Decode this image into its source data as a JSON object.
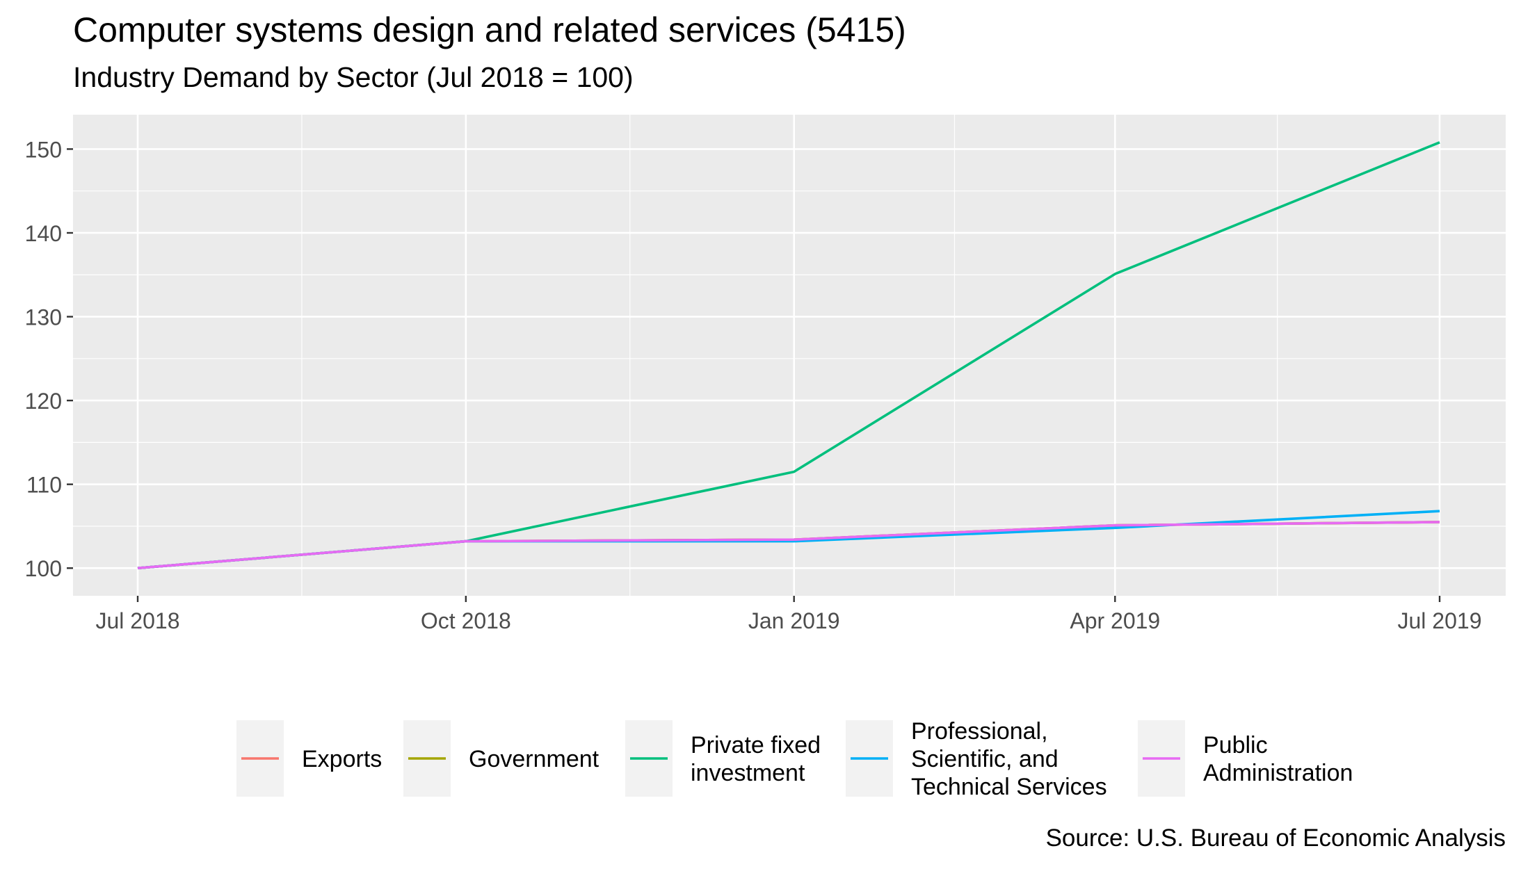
{
  "header": {
    "title": "Computer systems design and related services (5415)",
    "subtitle": "Industry Demand by Sector (Jul 2018 = 100)"
  },
  "footer": {
    "source": "Source: U.S. Bureau of Economic Analysis"
  },
  "chart_data": {
    "type": "line",
    "title": "Computer systems design and related services (5415)",
    "subtitle": "Industry Demand by Sector (Jul 2018 = 100)",
    "xlabel": "",
    "ylabel": "",
    "x": [
      "Jul 2018",
      "Oct 2018",
      "Jan 2019",
      "Apr 2019",
      "Jul 2019"
    ],
    "x_dates": [
      "2018-07-01",
      "2018-10-01",
      "2019-01-01",
      "2019-04-01",
      "2019-07-01"
    ],
    "x_ticks": [
      "Jul 2018",
      "Oct 2018",
      "Jan 2019",
      "Apr 2019",
      "Jul 2019"
    ],
    "y_ticks": [
      100,
      110,
      120,
      130,
      140,
      150
    ],
    "ylim": [
      96.7,
      154.1
    ],
    "grid": true,
    "legend_position": "bottom",
    "series": [
      {
        "name": "Exports",
        "color": "#F8766D",
        "values": [
          100,
          103.2,
          103.4,
          105.1,
          105.5
        ]
      },
      {
        "name": "Government",
        "color": "#A3A500",
        "values": [
          100,
          103.2,
          103.4,
          105.1,
          105.5
        ]
      },
      {
        "name": "Private fixed investment",
        "color": "#00BF7D",
        "values": [
          100,
          103.2,
          111.5,
          135.1,
          150.8
        ]
      },
      {
        "name": "Professional, Scientific, and Technical Services",
        "color": "#00B0F6",
        "values": [
          100,
          103.2,
          103.2,
          104.8,
          106.8
        ]
      },
      {
        "name": "Public Administration",
        "color": "#E76BF3",
        "values": [
          100,
          103.2,
          103.4,
          105.1,
          105.5
        ]
      }
    ],
    "legend_labels": [
      [
        "Exports"
      ],
      [
        "Government"
      ],
      [
        "Private fixed",
        "investment"
      ],
      [
        "Professional,",
        "Scientific, and",
        "Technical Services"
      ],
      [
        "Public",
        "Administration"
      ]
    ]
  }
}
